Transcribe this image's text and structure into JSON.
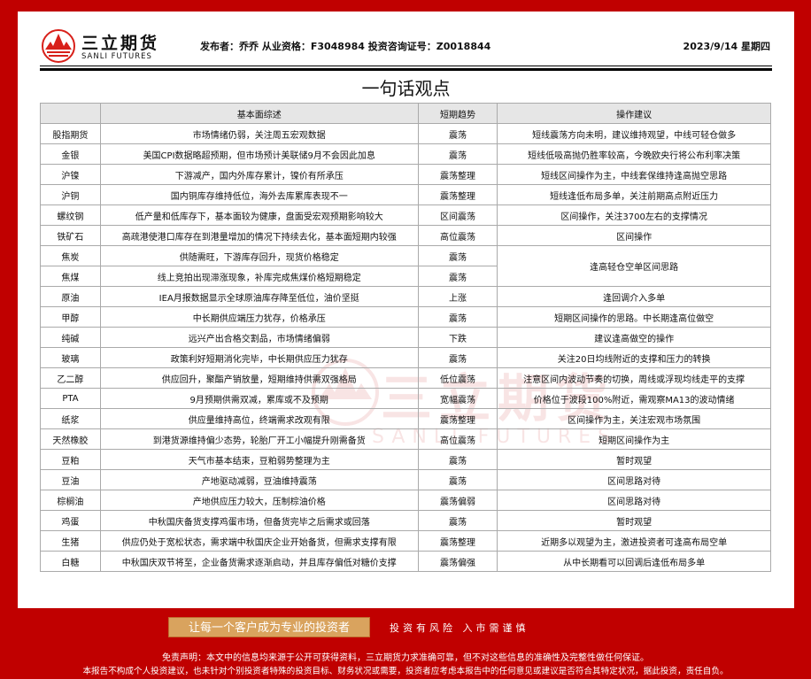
{
  "brand": {
    "name_cn": "三立期货",
    "name_en": "SANLI FUTURES",
    "color": "#c00000"
  },
  "header": {
    "publisher": "发布者：乔乔  从业资格：F3048984  投资咨询证号：Z0018844",
    "date": "2023/9/14 星期四"
  },
  "title": "一句话观点",
  "table": {
    "columns": [
      "",
      "基本面综述",
      "短期趋势",
      "操作建议"
    ],
    "rows": [
      {
        "name": "股指期货",
        "summary": "市场情绪仍弱，关注周五宏观数据",
        "trend": "震荡",
        "advice": "短线震荡方向未明，建议维持观望，中线可轻仓做多"
      },
      {
        "name": "金银",
        "summary": "美国CPI数据略超预期，但市场预计美联储9月不会因此加息",
        "trend": "震荡",
        "advice": "短线低吸高抛仍胜率较高，今晚欧央行将公布利率决策"
      },
      {
        "name": "沪镍",
        "summary": "下游减产，国内外库存累计，镍价有所承压",
        "trend": "震荡整理",
        "advice": "短线区间操作为主，中线套保维持逢高抛空思路"
      },
      {
        "name": "沪铜",
        "summary": "国内铜库存维持低位，海外去库累库表现不一",
        "trend": "震荡整理",
        "advice": "短线逢低布局多单，关注前期高点附近压力"
      },
      {
        "name": "螺纹钢",
        "summary": "低产量和低库存下，基本面较为健康，盘面受宏观预期影响较大",
        "trend": "区间震荡",
        "advice": "区间操作，关注3700左右的支撑情况"
      },
      {
        "name": "铁矿石",
        "summary": "高疏港使港口库存在到港量增加的情况下持续去化，基本面短期内较强",
        "trend": "高位震荡",
        "advice": "区间操作"
      },
      {
        "name": "焦炭",
        "summary": "供随需旺，下游库存回升，现货价格稳定",
        "trend": "震荡",
        "advice": "逢高轻仓空单区间思路"
      },
      {
        "name": "焦煤",
        "summary": "线上竞拍出现滞涨现象，补库完成焦煤价格短期稳定",
        "trend": "震荡",
        "advice": ""
      },
      {
        "name": "原油",
        "summary": "IEA月报数据显示全球原油库存降至低位，油价坚挺",
        "trend": "上涨",
        "advice": "逢回调介入多单"
      },
      {
        "name": "甲醇",
        "summary": "中长期供应端压力犹存，价格承压",
        "trend": "震荡",
        "advice": "短期区间操作的思路。中长期逢高位做空"
      },
      {
        "name": "纯碱",
        "summary": "远兴产出合格交割品，市场情绪偏弱",
        "trend": "下跌",
        "advice": "建议逢高做空的操作"
      },
      {
        "name": "玻璃",
        "summary": "政策利好短期消化完毕，中长期供应压力犹存",
        "trend": "震荡",
        "advice": "关注20日均线附近的支撑和压力的转换"
      },
      {
        "name": "乙二醇",
        "summary": "供应回升，聚酯产销放量，短期维持供需双强格局",
        "trend": "低位震荡",
        "advice": "注意区间内波动节奏的切换，周线或浮现均线走平的支撑"
      },
      {
        "name": "PTA",
        "summary": "9月预期供需双减，累库或不及预期",
        "trend": "宽幅震荡",
        "advice": "价格位于波段100%附近，需观察MA13的波动情绪"
      },
      {
        "name": "纸浆",
        "summary": "供应量维持高位，终端需求改观有限",
        "trend": "震荡整理",
        "advice": "区间操作为主，关注宏观市场氛围"
      },
      {
        "name": "天然橡胶",
        "summary": "到港货源维持偏少态势，轮胎厂开工小幅提升刚需备货",
        "trend": "高位震荡",
        "advice": "短期区间操作为主"
      },
      {
        "name": "豆粕",
        "summary": "天气市基本结束，豆粕弱势整理为主",
        "trend": "震荡",
        "advice": "暂时观望"
      },
      {
        "name": "豆油",
        "summary": "产地驱动减弱，豆油维持震荡",
        "trend": "震荡",
        "advice": "区间思路对待"
      },
      {
        "name": "棕榈油",
        "summary": "产地供应压力较大，压制棕油价格",
        "trend": "震荡偏弱",
        "advice": "区间思路对待"
      },
      {
        "name": "鸡蛋",
        "summary": "中秋国庆备货支撑鸡蛋市场，但备货完毕之后需求或回落",
        "trend": "震荡",
        "advice": "暂时观望"
      },
      {
        "name": "生猪",
        "summary": "供应仍处于宽松状态，需求端中秋国庆企业开始备货，但需求支撑有限",
        "trend": "震荡整理",
        "advice": "近期多以观望为主，激进投资者可逢高布局空单"
      },
      {
        "name": "白糖",
        "summary": "中秋国庆双节将至，企业备货需求逐渐启动，并且库存偏低对糖价支撑",
        "trend": "震荡偏强",
        "advice": "从中长期看可以回调后逢低布局多单"
      }
    ]
  },
  "footer": {
    "slogan": "让每一个客户成为专业的投资者",
    "risk": "投资有风险  入市需谨慎",
    "disclaimer1": "免责声明：本文中的信息均来源于公开可获得资料，三立期货力求准确可靠，但不对这些信息的准确性及完整性做任何保证。",
    "disclaimer2": "本报告不构成个人投资建议，也未针对个别投资者特殊的投资目标、财务状况或需要，投资者应考虑本报告中的任何意见或建议是否符合其特定状况，据此投资，责任自负。"
  }
}
